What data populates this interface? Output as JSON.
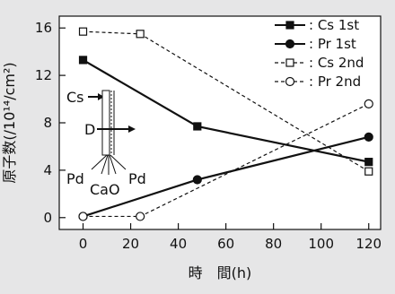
{
  "chart_data": {
    "type": "line",
    "xlabel": "時　間(h)",
    "ylabel": "原子数(/10¹⁴/cm²)",
    "xlim": [
      -10,
      125
    ],
    "ylim": [
      -1,
      17
    ],
    "xticks": [
      "0",
      "20",
      "40",
      "60",
      "80",
      "100",
      "120"
    ],
    "yticks": [
      "0",
      "4",
      "8",
      "12",
      "16"
    ],
    "grid": false,
    "legend_position": "top-right",
    "series": [
      {
        "name": ": Cs 1st",
        "marker": "square-filled",
        "line": "solid",
        "x": [
          0,
          48,
          120
        ],
        "y": [
          13.3,
          7.7,
          4.7
        ]
      },
      {
        "name": ": Pr  1st",
        "marker": "circle-filled",
        "line": "solid",
        "x": [
          0,
          48,
          120
        ],
        "y": [
          0.1,
          3.2,
          6.8
        ]
      },
      {
        "name": ": Cs 2nd",
        "marker": "square-open",
        "line": "dashed",
        "x": [
          0,
          24,
          120
        ],
        "y": [
          15.7,
          15.5,
          3.9
        ]
      },
      {
        "name": ": Pr  2nd",
        "marker": "circle-open",
        "line": "dashed",
        "x": [
          0,
          24,
          120
        ],
        "y": [
          0.1,
          0.1,
          9.6
        ]
      }
    ],
    "inset_labels": {
      "cs": "Cs",
      "d": "D",
      "pd_left": "Pd",
      "cao": "CaO",
      "pd_right": "Pd"
    }
  }
}
